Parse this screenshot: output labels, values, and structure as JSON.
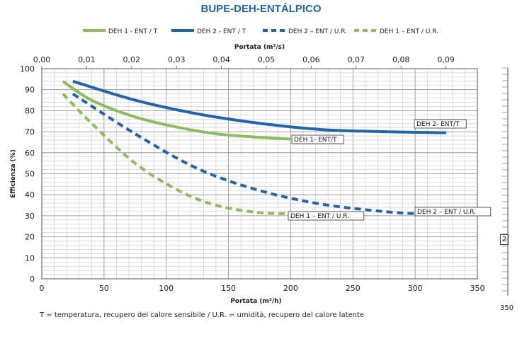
{
  "chart_data": {
    "type": "line",
    "title": "BUPE-DEH-ENTÁLPICO",
    "xlabel": "Portata (m³/h)",
    "x2label": "Portata (m³/s)",
    "ylabel": "Efficienza (%)",
    "xlim": [
      0,
      350
    ],
    "ylim": [
      0,
      100
    ],
    "x2lim": [
      0,
      0.097
    ],
    "x_ticks": [
      "0",
      "50",
      "100",
      "150",
      "200",
      "250",
      "300",
      "350"
    ],
    "x2_ticks": [
      "0,00",
      "0,01",
      "0,02",
      "0,03",
      "0,04",
      "0,05",
      "0,06",
      "0,07",
      "0,08",
      "0,09"
    ],
    "y_ticks": [
      "0",
      "10",
      "20",
      "30",
      "40",
      "50",
      "60",
      "70",
      "80",
      "90",
      "100"
    ],
    "grid": true,
    "legend_position": "top",
    "series": [
      {
        "name": "DEH 1 - ENT / T",
        "color": "#8cbd5a",
        "dash": "solid",
        "x": [
          17,
          40,
          75,
          110,
          140,
          170,
          200
        ],
        "y": [
          94,
          85,
          77,
          72,
          69,
          67.5,
          66.5
        ]
      },
      {
        "name": "DEH 2 - ENT / T",
        "color": "#1f63b5",
        "dash": "solid",
        "x": [
          25,
          75,
          125,
          175,
          225,
          275,
          325
        ],
        "y": [
          94,
          85,
          78.5,
          74,
          71,
          70,
          69.5
        ]
      },
      {
        "name": "DEH 2 – ENT / U.R.",
        "color": "#1f63b5",
        "dash": "dashed",
        "x": [
          25,
          75,
          125,
          175,
          225,
          275,
          300
        ],
        "y": [
          88,
          69,
          52.5,
          42,
          35.5,
          32,
          31
        ]
      },
      {
        "name": "DEH 1 – ENT / U.R.",
        "color": "#8cbd5a",
        "dash": "dashed",
        "x": [
          17,
          40,
          75,
          110,
          140,
          175,
          200
        ],
        "y": [
          88,
          74,
          55,
          42,
          35,
          31.5,
          31
        ]
      }
    ],
    "annotations": [
      {
        "text": "DEH 1- ENT/T"
      },
      {
        "text": "DEH 2- ENT/T"
      },
      {
        "text": "DEH 1 – ENT / U.R."
      },
      {
        "text": "DEH 2 – ENT / U.R."
      }
    ]
  },
  "footnote": "T = temperatura, recupero del calore sensibile / U.R. = umidità, recupero del calore latente",
  "right_rail": {
    "page_marker": "2",
    "bottom_value": "350"
  }
}
